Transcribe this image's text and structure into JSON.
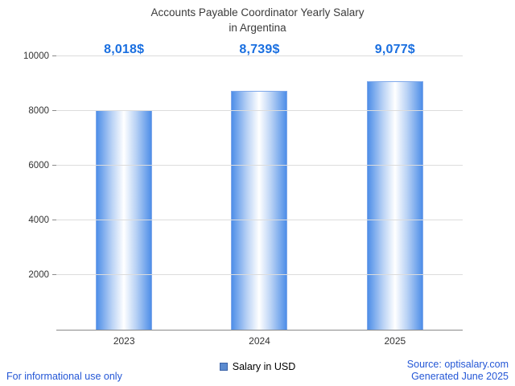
{
  "chart_data": {
    "type": "bar",
    "title_line1": "Accounts Payable Coordinator Yearly Salary",
    "title_line2": "in Argentina",
    "categories": [
      "2023",
      "2024",
      "2025"
    ],
    "values": [
      8018,
      8739,
      9077
    ],
    "value_labels": [
      "8,018$",
      "8,739$",
      "9,077$"
    ],
    "legend": "Salary in USD",
    "ylim": [
      0,
      10000
    ],
    "yticks": [
      2000,
      4000,
      6000,
      8000,
      10000
    ],
    "grid": true,
    "legend_position": "bottom",
    "xlabel": "",
    "ylabel": ""
  },
  "footer": {
    "disclaimer": "For informational use only",
    "source": "Source: optisalary.com",
    "generated": "Generated June 2025"
  },
  "colors": {
    "value_label": "#1a6fe0",
    "link_text": "#2457d6",
    "bar_edge": "#4e8ee8",
    "bar_mid": "#b9d2f5",
    "bar_center": "#ffffff",
    "legend_swatch": "#5b8bd0",
    "gridline": "#dcdcdc",
    "axis_line": "#8a8a8a",
    "title_text": "#3b3b3b"
  }
}
